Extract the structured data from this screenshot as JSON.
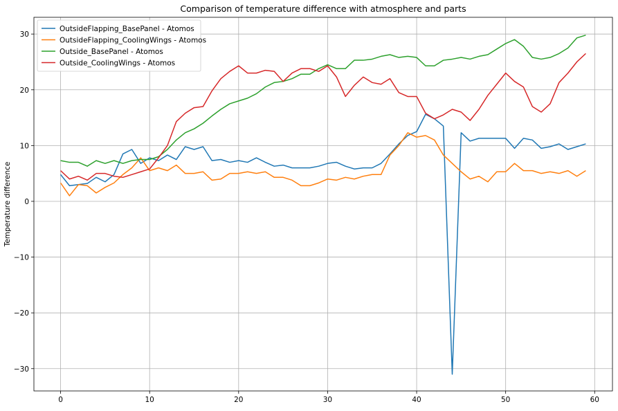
{
  "chart_data": {
    "type": "line",
    "title": "Comparison of temperature difference with atmosphere and parts",
    "xlabel": "",
    "ylabel": "Temperature difference",
    "xlim": [
      -3,
      62
    ],
    "ylim": [
      -34,
      33
    ],
    "xticks": [
      0,
      10,
      20,
      30,
      40,
      50,
      60
    ],
    "yticks": [
      -30,
      -20,
      -10,
      0,
      10,
      20,
      30
    ],
    "xtick_labels": [
      "0",
      "10",
      "20",
      "30",
      "40",
      "50",
      "60"
    ],
    "ytick_labels": [
      "−30",
      "−20",
      "−10",
      "0",
      "10",
      "20",
      "30"
    ],
    "grid": true,
    "legend_position": "top-left",
    "x": [
      0,
      1,
      2,
      3,
      4,
      5,
      6,
      7,
      8,
      9,
      10,
      11,
      12,
      13,
      14,
      15,
      16,
      17,
      18,
      19,
      20,
      21,
      22,
      23,
      24,
      25,
      26,
      27,
      28,
      29,
      30,
      31,
      32,
      33,
      34,
      35,
      36,
      37,
      38,
      39,
      40,
      41,
      42,
      43,
      44,
      45,
      46,
      47,
      48,
      49,
      50,
      51,
      52,
      53,
      54,
      55,
      56,
      57,
      58,
      59
    ],
    "series": [
      {
        "name": "OutsideFlapping_BasePanel - Atomos",
        "color": "#1f77b4",
        "values": [
          4.8,
          2.8,
          3.0,
          3.2,
          4.3,
          3.5,
          4.8,
          8.5,
          9.3,
          6.8,
          7.8,
          7.3,
          8.3,
          7.5,
          9.8,
          9.3,
          9.8,
          7.3,
          7.5,
          7.0,
          7.3,
          7.0,
          7.8,
          7.0,
          6.3,
          6.5,
          6.0,
          6.0,
          6.0,
          6.3,
          6.8,
          7.0,
          6.3,
          5.8,
          6.0,
          6.0,
          6.8,
          8.5,
          10.3,
          11.8,
          12.5,
          15.6,
          14.8,
          13.5,
          -31.0,
          12.3,
          10.8,
          11.3,
          11.3,
          11.3,
          11.3,
          9.5,
          11.3,
          11.0,
          9.5,
          9.8,
          10.3,
          9.3,
          9.8,
          10.3
        ]
      },
      {
        "name": "OutsideFlapping_CoolingWings - Atomos",
        "color": "#ff7f0e",
        "values": [
          3.3,
          1.0,
          3.0,
          2.8,
          1.5,
          2.5,
          3.3,
          4.8,
          6.0,
          7.8,
          5.5,
          6.0,
          5.5,
          6.5,
          5.0,
          5.0,
          5.3,
          3.8,
          4.0,
          5.0,
          5.0,
          5.3,
          5.0,
          5.3,
          4.3,
          4.3,
          3.8,
          2.8,
          2.8,
          3.3,
          4.0,
          3.8,
          4.3,
          4.0,
          4.5,
          4.8,
          4.8,
          8.3,
          10.0,
          12.3,
          11.5,
          11.8,
          11.0,
          8.3,
          6.8,
          5.3,
          4.0,
          4.5,
          3.5,
          5.3,
          5.3,
          6.8,
          5.5,
          5.5,
          5.0,
          5.3,
          5.0,
          5.5,
          4.5,
          5.5
        ]
      },
      {
        "name": "Outside_BasePanel - Atomos",
        "color": "#2ca02c",
        "values": [
          7.3,
          7.0,
          7.0,
          6.3,
          7.3,
          6.8,
          7.3,
          6.8,
          7.3,
          7.5,
          7.5,
          8.0,
          9.3,
          11.0,
          12.3,
          13.0,
          14.0,
          15.3,
          16.5,
          17.5,
          18.0,
          18.5,
          19.3,
          20.5,
          21.3,
          21.5,
          22.0,
          22.8,
          22.8,
          23.8,
          24.5,
          23.8,
          23.8,
          25.3,
          25.3,
          25.5,
          26.0,
          26.3,
          25.8,
          26.0,
          25.8,
          24.3,
          24.3,
          25.3,
          25.5,
          25.8,
          25.5,
          26.0,
          26.3,
          27.3,
          28.3,
          29.0,
          27.8,
          25.8,
          25.5,
          25.8,
          26.5,
          27.5,
          29.3,
          29.8
        ]
      },
      {
        "name": "Outside_CoolingWings - Atomos",
        "color": "#d62728",
        "values": [
          5.5,
          4.0,
          4.5,
          3.8,
          5.0,
          5.0,
          4.5,
          4.3,
          4.8,
          5.3,
          5.8,
          7.8,
          10.0,
          14.3,
          15.8,
          16.8,
          17.0,
          19.8,
          22.0,
          23.3,
          24.3,
          23.0,
          23.0,
          23.5,
          23.3,
          21.5,
          23.0,
          23.8,
          23.8,
          23.3,
          24.3,
          22.3,
          18.8,
          20.8,
          22.3,
          21.3,
          21.0,
          22.0,
          19.5,
          18.8,
          18.8,
          15.8,
          14.8,
          15.5,
          16.5,
          16.0,
          14.5,
          16.5,
          19.0,
          21.0,
          23.0,
          21.5,
          20.5,
          17.0,
          16.0,
          17.5,
          21.3,
          23.0,
          25.0,
          26.5
        ]
      }
    ]
  }
}
